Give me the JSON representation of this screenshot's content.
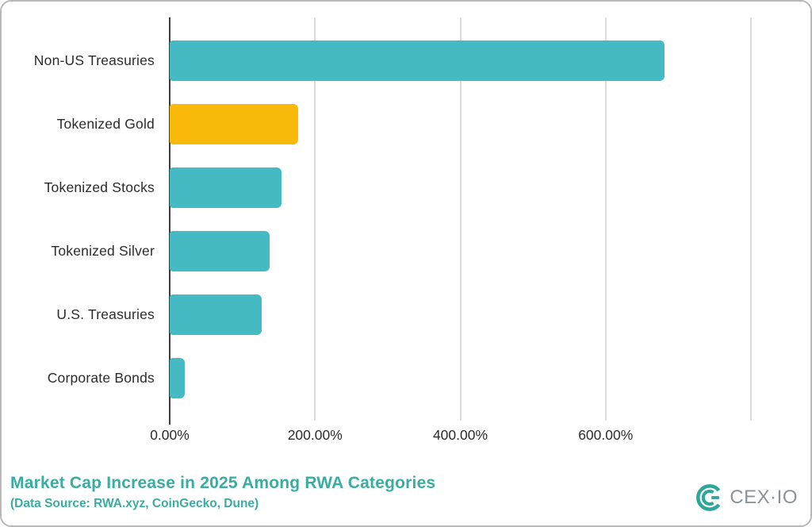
{
  "chart_data": {
    "type": "bar",
    "orientation": "horizontal",
    "title": "Market Cap Increase in 2025 Among RWA Categories",
    "subtitle": "(Data Source: RWA.xyz, CoinGecko, Dune)",
    "categories": [
      "Non-US Treasuries",
      "Tokenized Gold",
      "Tokenized Stocks",
      "Tokenized Silver",
      "U.S. Treasuries",
      "Corporate Bonds"
    ],
    "values": [
      681,
      177,
      154,
      138,
      127,
      21
    ],
    "unit": "%",
    "bar_colors": [
      "#46bac3",
      "#f9ba0b",
      "#46bac3",
      "#46bac3",
      "#46bac3",
      "#46bac3"
    ],
    "xlim": [
      0,
      800
    ],
    "x_ticks": [
      {
        "value": 0,
        "label": "0.00%"
      },
      {
        "value": 200,
        "label": "200.00%"
      },
      {
        "value": 400,
        "label": "400.00%"
      },
      {
        "value": 600,
        "label": "600.00%"
      }
    ],
    "gridline_values": [
      200,
      400,
      600,
      800
    ],
    "grid": "vertical",
    "legend": "none"
  },
  "branding": {
    "logo_text": "CEX·IO",
    "logo_icon": "cexio-logo-icon"
  },
  "colors": {
    "bar_teal": "#46bac3",
    "bar_gold": "#f9ba0b",
    "title_teal": "#39ada0",
    "logo_teal": "#2ea79b",
    "logo_gray": "#8b9299",
    "axis": "#3d3d3d",
    "gridline": "#dcdcdc",
    "label_text": "#2b2b2b"
  }
}
